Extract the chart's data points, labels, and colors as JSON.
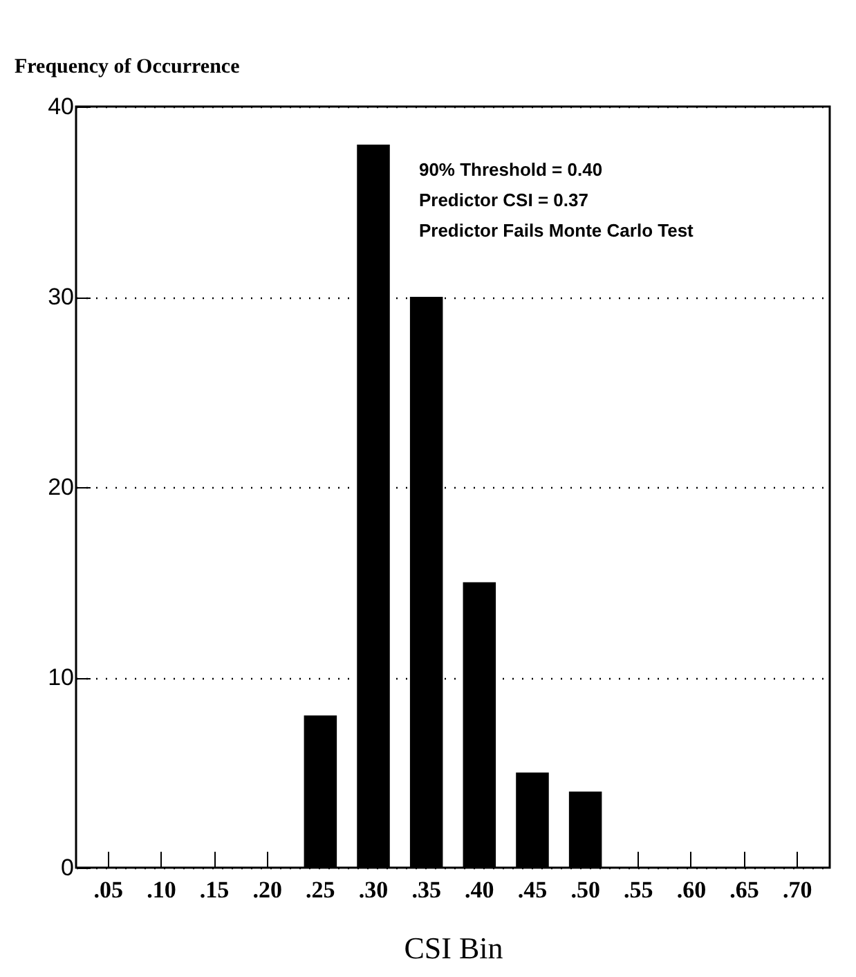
{
  "chart_data": {
    "type": "bar",
    "ylabel": "Frequency of Occurrence",
    "xlabel": "CSI Bin",
    "categories": [
      ".05",
      ".10",
      ".15",
      ".20",
      ".25",
      ".30",
      ".35",
      ".40",
      ".45",
      ".50",
      ".55",
      ".60",
      ".65",
      ".70"
    ],
    "values": [
      0,
      0,
      0,
      0,
      8,
      38,
      30,
      15,
      5,
      4,
      0,
      0,
      0,
      0
    ],
    "color": "#000000",
    "ylim": [
      0,
      40
    ],
    "yticks": [
      0,
      10,
      20,
      30,
      40
    ],
    "grid": "y",
    "line_style": "dotted",
    "annotations": [
      "90% Threshold = 0.40",
      "Predictor CSI = 0.37",
      "Predictor Fails Monte Carlo Test"
    ]
  }
}
